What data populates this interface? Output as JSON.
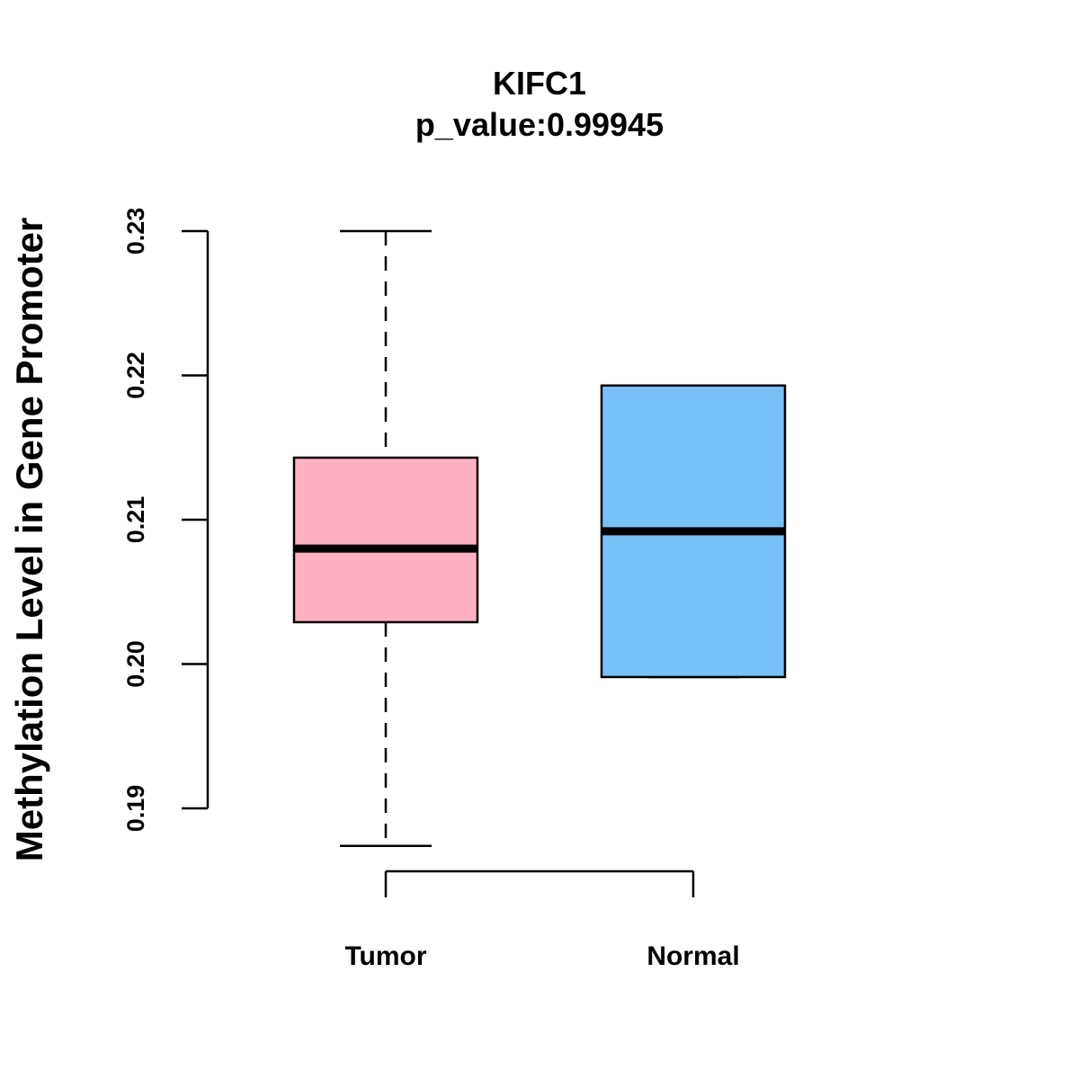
{
  "chart_data": {
    "type": "boxplot",
    "title": "KIFC1",
    "subtitle": "p_value:0.99945",
    "xlabel": "",
    "ylabel": "Methylation Level in Gene Promoter",
    "ylim": [
      0.19,
      0.23
    ],
    "yticks": [
      0.19,
      0.2,
      0.21,
      0.22,
      0.23
    ],
    "ytick_labels": [
      "0.19",
      "0.20",
      "0.21",
      "0.22",
      "0.23"
    ],
    "categories": [
      "Tumor",
      "Normal"
    ],
    "series": [
      {
        "name": "Tumor",
        "color": "#FDB1C3",
        "whisker_low": 0.1874,
        "q1": 0.2029,
        "median": 0.208,
        "q3": 0.2143,
        "whisker_high": 0.23
      },
      {
        "name": "Normal",
        "color": "#78C1F7",
        "whisker_low": 0.1991,
        "q1": 0.1991,
        "median": 0.2092,
        "q3": 0.2193,
        "whisker_high": 0.2193
      }
    ],
    "grid": false,
    "legend": "none"
  }
}
